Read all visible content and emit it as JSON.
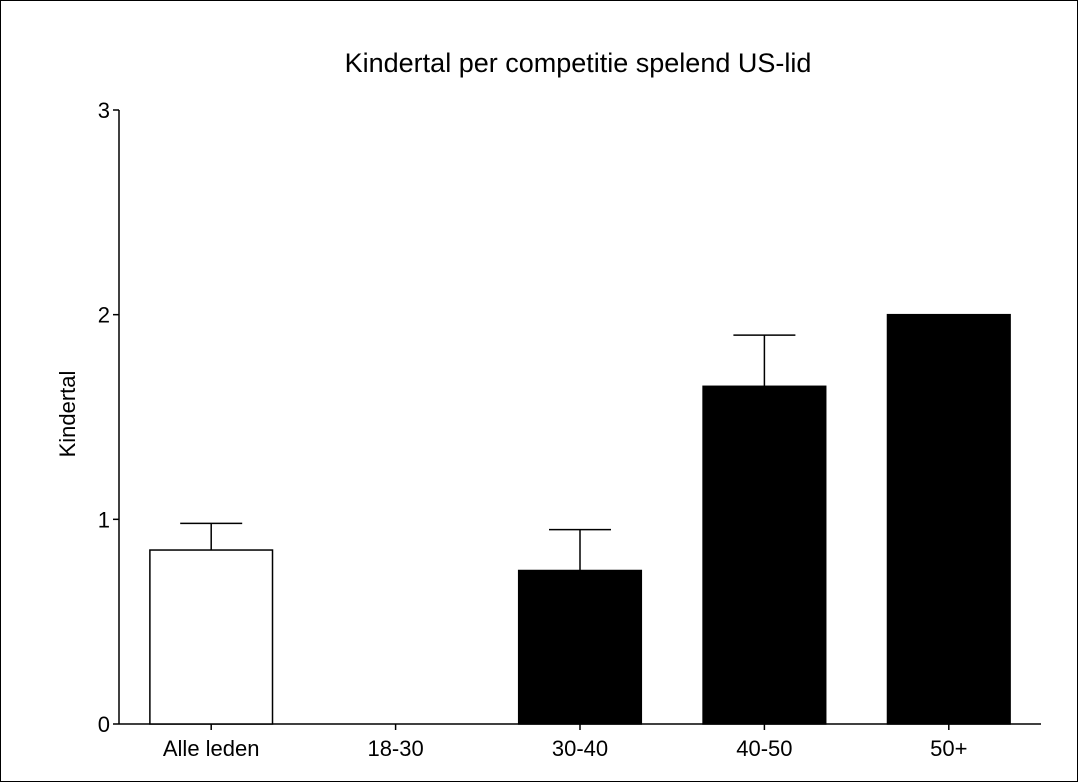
{
  "chart_data": {
    "type": "bar",
    "title": "Kindertal per competitie spelend US-lid",
    "xlabel": "",
    "ylabel": "Kindertal",
    "categories": [
      "Alle leden",
      "18-30",
      "30-40",
      "40-50",
      "50+"
    ],
    "values": [
      0.85,
      0.0,
      0.75,
      1.65,
      2.0
    ],
    "error_upper": [
      0.13,
      0.0,
      0.2,
      0.25,
      0.0
    ],
    "bar_fill": [
      "#ffffff",
      "#000000",
      "#000000",
      "#000000",
      "#000000"
    ],
    "ylim": [
      0,
      3
    ],
    "yticks": [
      "0",
      "1",
      "2",
      "3"
    ],
    "grid": false,
    "legend": "none"
  }
}
